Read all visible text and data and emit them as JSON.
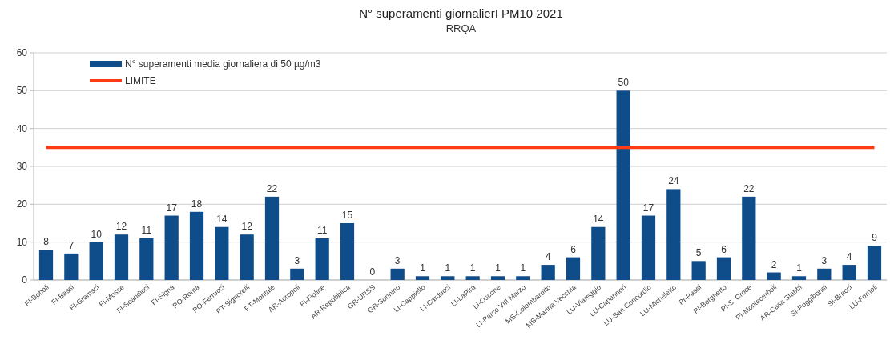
{
  "chart_data": {
    "type": "bar",
    "title": "N° superamenti giornalierI PM10 2021",
    "subtitle": "RRQA",
    "categories": [
      "FI-Boboli",
      "FI-Bassi",
      "FI-Gramsci",
      "FI-Mosse",
      "FI-Scandicci",
      "FI-Signa",
      "PO-Roma",
      "PO-Ferrucci",
      "PT-Signorelli",
      "PT-Montale",
      "AR-Acropoli",
      "FI-Figline",
      "AR-Repubblica",
      "GR-URSS",
      "GR-Sonnino",
      "LI-Cappiello",
      "LI-Carducci",
      "LI-LaPira",
      "LI-Oscone",
      "LI-Parco VIII Marzo",
      "MS-Colombarotto",
      "MS-Marina Vecchia",
      "LU-Viareggio",
      "LU-Capannori",
      "LU-San Concordio",
      "LU-Micheletto",
      "PI-Passi",
      "PI-Borghetto",
      "PI-S. Croce",
      "PI-Montecerboli",
      "AR-Casa Stabbi",
      "SI-Poggibonsi",
      "SI-Bracci",
      "LU-Fornoli"
    ],
    "series": [
      {
        "name": "N° superamenti media giornaliera di 50 µg/m3",
        "color": "#0f4c8a",
        "values": [
          8,
          7,
          10,
          12,
          11,
          17,
          18,
          14,
          12,
          22,
          3,
          11,
          15,
          0,
          3,
          1,
          1,
          1,
          1,
          1,
          4,
          6,
          14,
          50,
          17,
          24,
          5,
          6,
          22,
          2,
          1,
          3,
          4,
          9
        ],
        "value_labels": [
          "8",
          "7",
          "10",
          "12",
          "11",
          "17",
          "18",
          "14",
          "12",
          "22",
          "3",
          "11",
          "15",
          "0",
          "3",
          "1",
          "1",
          "1",
          "1",
          "1",
          "4",
          "6",
          "14",
          "50",
          "17",
          "24",
          "5",
          "6",
          "22",
          "2",
          "1",
          "3",
          "4",
          "9"
        ]
      },
      {
        "name": "LIMITE",
        "type": "line",
        "color": "#ff3b14",
        "values": [
          35,
          35,
          35,
          35,
          35,
          35,
          35,
          35,
          35,
          35,
          35,
          35,
          35,
          35,
          35,
          35,
          35,
          35,
          35,
          35,
          35,
          35,
          35,
          35,
          35,
          35,
          35,
          35,
          35,
          35,
          35,
          35,
          35,
          35
        ]
      }
    ],
    "ylim": [
      0,
      60
    ],
    "yticks": [
      0,
      10,
      20,
      30,
      40,
      50,
      60
    ],
    "grid": "y",
    "legend": "top left"
  }
}
